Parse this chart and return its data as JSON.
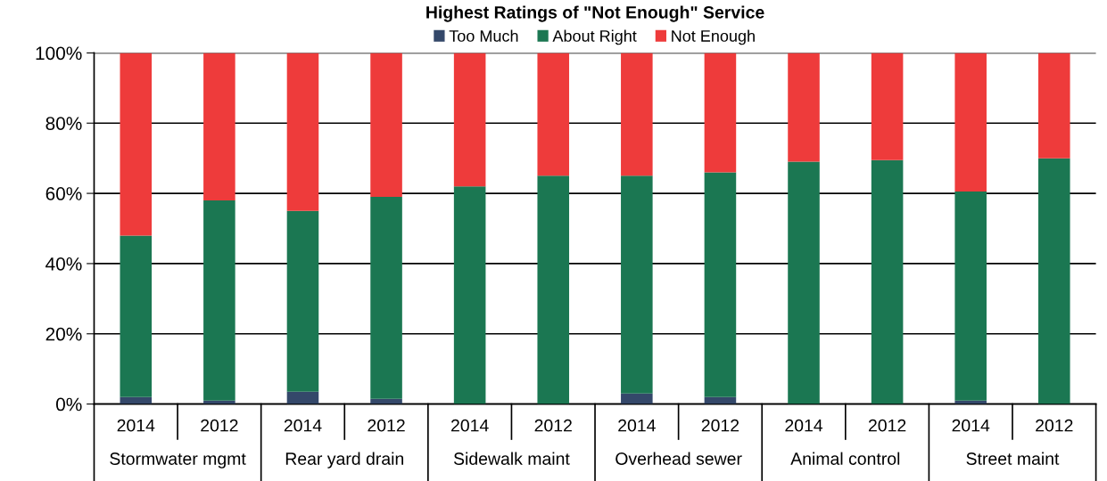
{
  "chart_data": {
    "type": "bar",
    "title": "Highest Ratings of \"Not Enough\" Service",
    "categories": [
      "2014",
      "2012",
      "2014",
      "2012",
      "2014",
      "2012",
      "2014",
      "2012",
      "2014",
      "2012",
      "2014",
      "2012"
    ],
    "stacked": true,
    "series": [
      {
        "name": "Too Much",
        "color": "#34486a",
        "values": [
          2,
          1,
          3.5,
          1.5,
          0,
          0,
          3,
          2,
          0,
          0,
          1,
          0
        ]
      },
      {
        "name": "About Right",
        "color": "#1b7752",
        "values": [
          46,
          57,
          51.5,
          57.5,
          62,
          65,
          62,
          64,
          69,
          69.5,
          59.5,
          70
        ]
      },
      {
        "name": "Not Enough",
        "color": "#ee3b3b",
        "values": [
          52,
          42,
          45,
          41,
          38,
          35,
          35,
          34,
          31,
          30.5,
          39.5,
          30
        ]
      }
    ],
    "annotations": [
      "Stormwater mgmt",
      "Rear yard drain",
      "Sidewalk maint",
      "Overhead sewer",
      "Animal control",
      "Street maint"
    ],
    "ylim": [
      0,
      100
    ],
    "yticks": [
      {
        "value": 0,
        "label": "0%"
      },
      {
        "value": 20,
        "label": "20%"
      },
      {
        "value": 40,
        "label": "40%"
      },
      {
        "value": 60,
        "label": "60%"
      },
      {
        "value": 80,
        "label": "80%"
      },
      {
        "value": 100,
        "label": "100%"
      }
    ],
    "grid": "y",
    "legend": "top"
  }
}
